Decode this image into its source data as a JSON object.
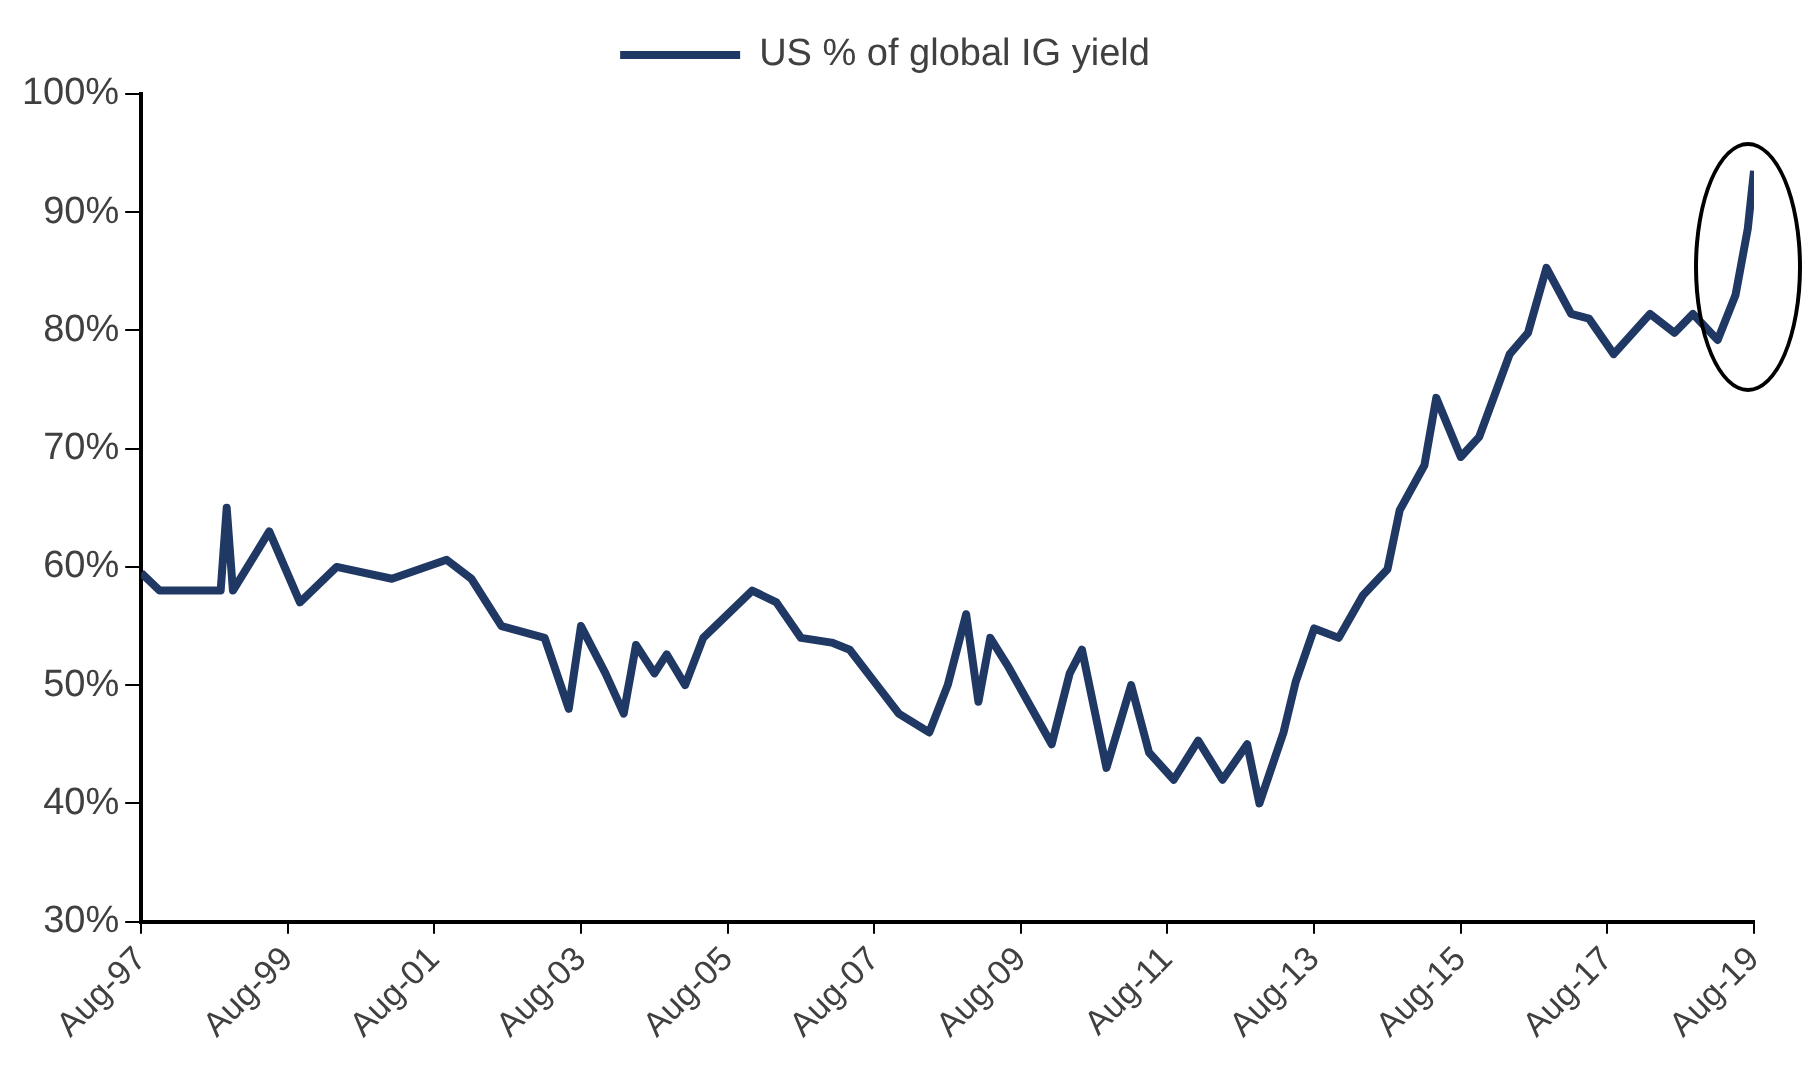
{
  "chart_data": {
    "type": "line",
    "legend": "top",
    "grid": false,
    "marker": "none",
    "line_style": "solid",
    "xlim": [
      "1997-08",
      "2019-08"
    ],
    "xticks": [
      {
        "value": "1997-08",
        "label": "Aug-97"
      },
      {
        "value": "1999-08",
        "label": "Aug-99"
      },
      {
        "value": "2001-08",
        "label": "Aug-01"
      },
      {
        "value": "2003-08",
        "label": "Aug-03"
      },
      {
        "value": "2005-08",
        "label": "Aug-05"
      },
      {
        "value": "2007-08",
        "label": "Aug-07"
      },
      {
        "value": "2009-08",
        "label": "Aug-09"
      },
      {
        "value": "2011-08",
        "label": "Aug-11"
      },
      {
        "value": "2013-08",
        "label": "Aug-13"
      },
      {
        "value": "2015-08",
        "label": "Aug-15"
      },
      {
        "value": "2017-08",
        "label": "Aug-17"
      },
      {
        "value": "2019-08",
        "label": "Aug-19"
      }
    ],
    "ylim": [
      30,
      100
    ],
    "yticks": [
      {
        "value": 30,
        "label": "30%"
      },
      {
        "value": 40,
        "label": "40%"
      },
      {
        "value": 50,
        "label": "50%"
      },
      {
        "value": 60,
        "label": "60%"
      },
      {
        "value": 70,
        "label": "70%"
      },
      {
        "value": 80,
        "label": "80%"
      },
      {
        "value": 90,
        "label": "90%"
      },
      {
        "value": 100,
        "label": "100%"
      }
    ],
    "x": [
      "1997-08",
      "1997-11",
      "1998-03",
      "1998-09",
      "1998-10",
      "1998-11",
      "1999-05",
      "1999-10",
      "2000-04",
      "2001-01",
      "2001-10",
      "2002-02",
      "2002-07",
      "2003-02",
      "2003-06",
      "2003-08",
      "2003-12",
      "2004-03",
      "2004-05",
      "2004-08",
      "2004-10",
      "2005-01",
      "2005-04",
      "2005-12",
      "2006-04",
      "2006-08",
      "2007-01",
      "2007-04",
      "2007-08",
      "2007-12",
      "2008-05",
      "2008-08",
      "2008-11",
      "2009-01",
      "2009-03",
      "2009-06",
      "2010-01",
      "2010-04",
      "2010-06",
      "2010-10",
      "2011-02",
      "2011-05",
      "2011-09",
      "2012-01",
      "2012-05",
      "2012-09",
      "2012-11",
      "2013-03",
      "2013-05",
      "2013-08",
      "2013-12",
      "2014-04",
      "2014-08",
      "2014-10",
      "2015-02",
      "2015-04",
      "2015-08",
      "2015-11",
      "2016-04",
      "2016-07",
      "2016-10",
      "2017-02",
      "2017-05",
      "2017-09",
      "2018-03",
      "2018-07",
      "2018-10",
      "2019-02",
      "2019-05",
      "2019-07",
      "2019-08"
    ],
    "series": [
      {
        "name": "US % of global IG yield",
        "color": "#1f3864",
        "values": [
          59.5,
          58,
          58,
          58,
          65,
          58,
          63,
          57,
          60,
          59,
          60.6,
          59,
          55,
          54,
          48,
          55,
          51,
          47.6,
          53.4,
          51,
          52.6,
          50,
          54,
          58,
          57,
          54,
          53.6,
          53,
          50.3,
          47.6,
          46,
          50,
          56,
          48.6,
          54,
          51.5,
          45,
          51,
          53,
          43,
          50,
          44.3,
          42,
          45.3,
          42,
          45,
          40,
          46,
          50.3,
          54.8,
          54,
          57.6,
          59.8,
          64.8,
          68.6,
          74.3,
          69.3,
          71,
          78,
          79.8,
          85.3,
          81.4,
          81,
          78,
          81.4,
          79.8,
          81.4,
          79.2,
          83,
          88.6,
          93.5
        ]
      }
    ]
  }
}
